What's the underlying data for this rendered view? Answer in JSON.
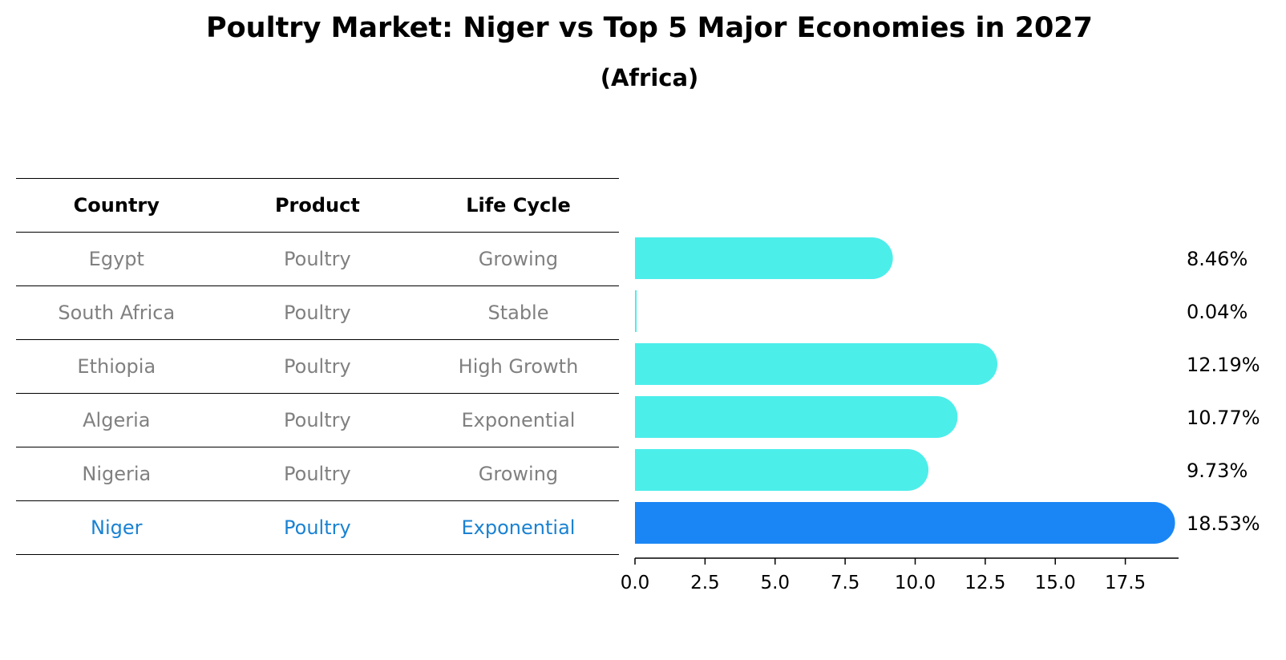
{
  "title": "Poultry Market: Niger vs Top 5 Major Economies in 2027",
  "subtitle": "(Africa)",
  "table": {
    "headers": [
      "Country",
      "Product",
      "Life Cycle"
    ],
    "rows": [
      {
        "country": "Egypt",
        "product": "Poultry",
        "life_cycle": "Growing"
      },
      {
        "country": "South Africa",
        "product": "Poultry",
        "life_cycle": "Stable"
      },
      {
        "country": "Ethiopia",
        "product": "Poultry",
        "life_cycle": "High Growth"
      },
      {
        "country": "Algeria",
        "product": "Poultry",
        "life_cycle": "Exponential"
      },
      {
        "country": "Nigeria",
        "product": "Poultry",
        "life_cycle": "Growing"
      },
      {
        "country": "Niger",
        "product": "Poultry",
        "life_cycle": "Exponential"
      }
    ]
  },
  "colors": {
    "bar": "#4ceeea",
    "highlight_bar": "#1a86f5",
    "highlight_text": "#1a82d2",
    "muted_text": "#808080"
  },
  "chart_data": {
    "type": "bar",
    "orientation": "horizontal",
    "categories": [
      "Egypt",
      "South Africa",
      "Ethiopia",
      "Algeria",
      "Nigeria",
      "Niger"
    ],
    "values": [
      8.46,
      0.04,
      12.19,
      10.77,
      9.73,
      18.53
    ],
    "value_labels": [
      "8.46%",
      "0.04%",
      "12.19%",
      "10.77%",
      "9.73%",
      "18.53%"
    ],
    "highlight": "Niger",
    "xlim": [
      0,
      19.4
    ],
    "xticks": [
      0.0,
      2.5,
      5.0,
      7.5,
      10.0,
      12.5,
      15.0,
      17.5
    ],
    "xtick_labels": [
      "0.0",
      "2.5",
      "5.0",
      "7.5",
      "10.0",
      "12.5",
      "15.0",
      "17.5"
    ],
    "title": "Poultry Market: Niger vs Top 5 Major Economies in 2027",
    "subtitle": "(Africa)",
    "xlabel": "",
    "ylabel": ""
  }
}
